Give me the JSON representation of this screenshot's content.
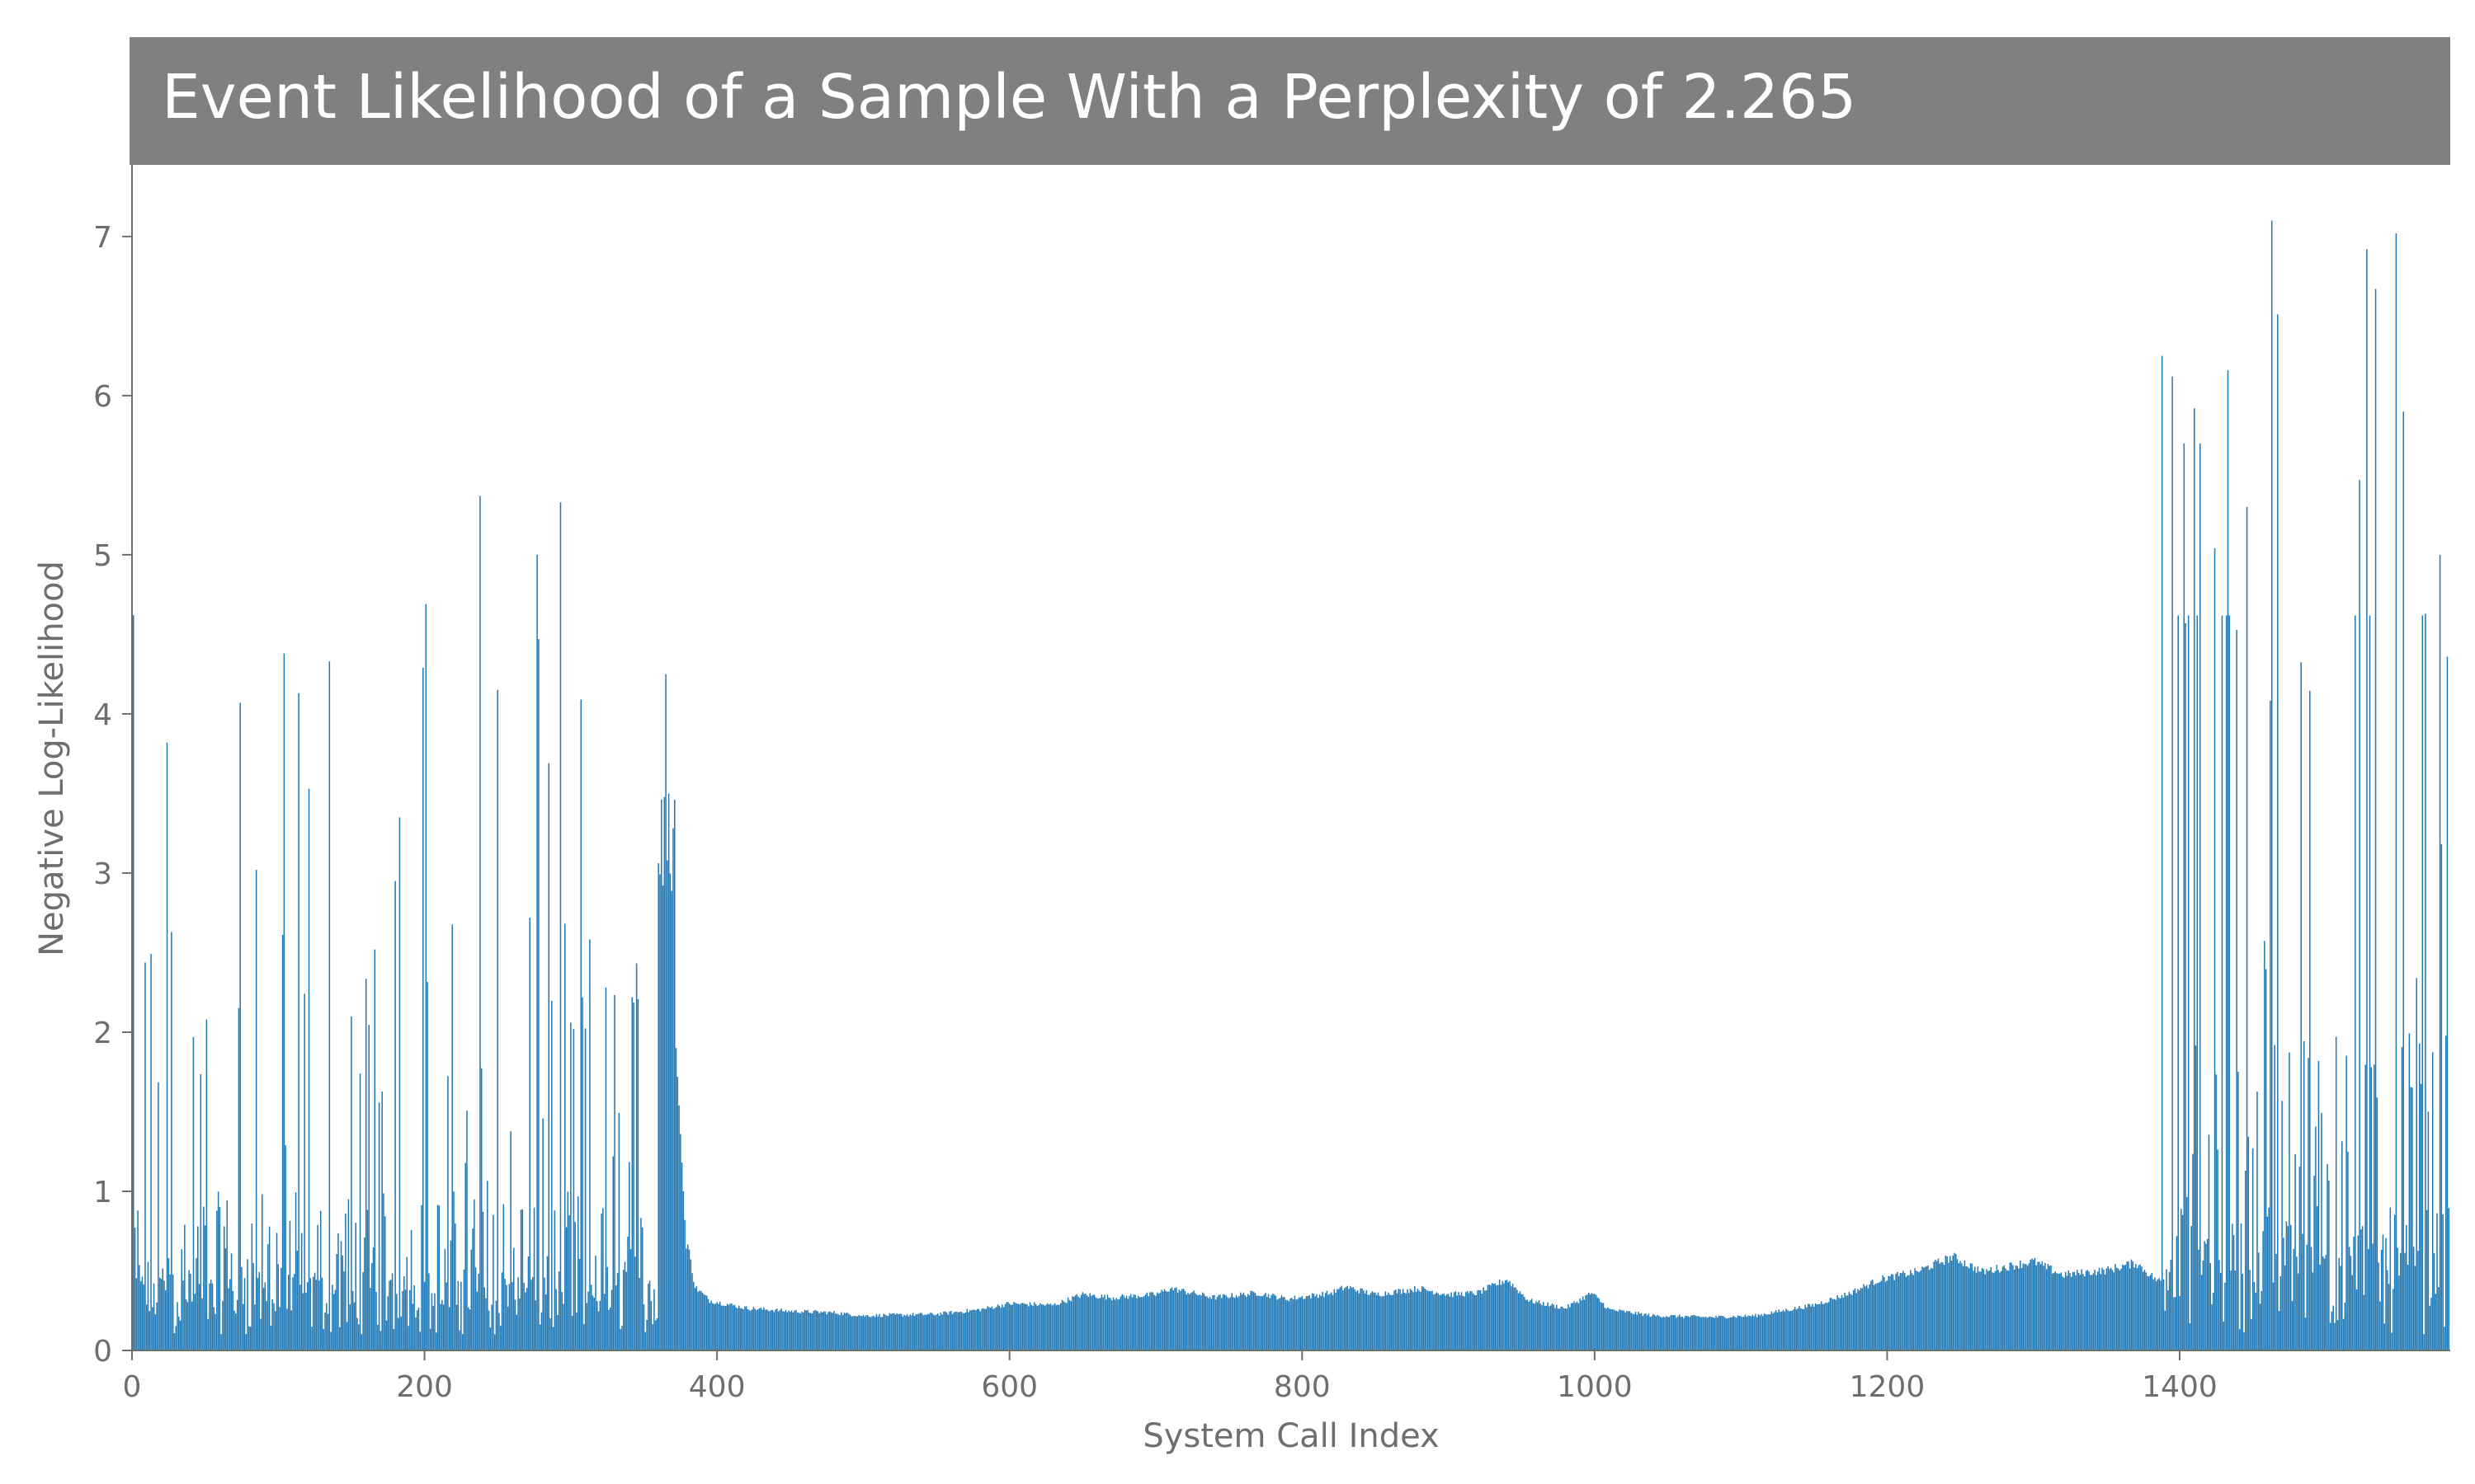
{
  "chart_data": {
    "type": "bar",
    "title": "Event Likelihood of a Sample With a Perplexity of 2.265",
    "xlabel": "System Call Index",
    "ylabel": "Negative Log-Likelihood",
    "xlim": [
      0,
      1585
    ],
    "ylim": [
      0,
      7.45
    ],
    "xticks": [
      0,
      200,
      400,
      600,
      800,
      1000,
      1200,
      1400
    ],
    "yticks": [
      0,
      1,
      2,
      3,
      4,
      5,
      6,
      7
    ],
    "grid": false,
    "bar_color": "#1f77b4",
    "title_background": "#808080",
    "n_points": 1585,
    "segments": [
      {
        "range": [
          0,
          380
        ],
        "pattern": "noisy",
        "baseline": 0.5,
        "notes": "spiky region, peaks up to ~5.4"
      },
      {
        "range": [
          380,
          1390
        ],
        "pattern": "smooth",
        "notes": "smooth low plateau ~0.2-0.6"
      },
      {
        "range": [
          1390,
          1585
        ],
        "pattern": "noisy",
        "baseline": 1.0,
        "notes": "spiky region, peaks up to ~7.1"
      }
    ],
    "smooth_profile": [
      [
        380,
        0.7
      ],
      [
        385,
        0.42
      ],
      [
        395,
        0.33
      ],
      [
        420,
        0.28
      ],
      [
        450,
        0.26
      ],
      [
        480,
        0.25
      ],
      [
        500,
        0.23
      ],
      [
        550,
        0.24
      ],
      [
        580,
        0.27
      ],
      [
        600,
        0.31
      ],
      [
        630,
        0.3
      ],
      [
        650,
        0.37
      ],
      [
        670,
        0.35
      ],
      [
        700,
        0.37
      ],
      [
        710,
        0.41
      ],
      [
        740,
        0.35
      ],
      [
        770,
        0.38
      ],
      [
        790,
        0.34
      ],
      [
        820,
        0.38
      ],
      [
        830,
        0.42
      ],
      [
        850,
        0.37
      ],
      [
        880,
        0.41
      ],
      [
        900,
        0.37
      ],
      [
        920,
        0.38
      ],
      [
        940,
        0.47
      ],
      [
        955,
        0.33
      ],
      [
        980,
        0.28
      ],
      [
        998,
        0.38
      ],
      [
        1010,
        0.27
      ],
      [
        1040,
        0.23
      ],
      [
        1080,
        0.22
      ],
      [
        1110,
        0.23
      ],
      [
        1150,
        0.3
      ],
      [
        1175,
        0.38
      ],
      [
        1195,
        0.47
      ],
      [
        1220,
        0.52
      ],
      [
        1245,
        0.62
      ],
      [
        1265,
        0.52
      ],
      [
        1300,
        0.59
      ],
      [
        1320,
        0.5
      ],
      [
        1350,
        0.53
      ],
      [
        1370,
        0.58
      ],
      [
        1385,
        0.46
      ],
      [
        1390,
        0.47
      ]
    ],
    "peaks": [
      {
        "x": 1,
        "y": 4.62
      },
      {
        "x": 24,
        "y": 3.82
      },
      {
        "x": 27,
        "y": 2.63
      },
      {
        "x": 51,
        "y": 2.08
      },
      {
        "x": 74,
        "y": 4.07
      },
      {
        "x": 85,
        "y": 3.02
      },
      {
        "x": 104,
        "y": 4.38
      },
      {
        "x": 114,
        "y": 4.13
      },
      {
        "x": 121,
        "y": 3.53
      },
      {
        "x": 135,
        "y": 4.33
      },
      {
        "x": 166,
        "y": 2.52
      },
      {
        "x": 180,
        "y": 2.95
      },
      {
        "x": 183,
        "y": 3.35
      },
      {
        "x": 199,
        "y": 4.29
      },
      {
        "x": 201,
        "y": 4.69
      },
      {
        "x": 238,
        "y": 5.37
      },
      {
        "x": 250,
        "y": 4.15
      },
      {
        "x": 272,
        "y": 2.72
      },
      {
        "x": 277,
        "y": 5.0
      },
      {
        "x": 278,
        "y": 4.47
      },
      {
        "x": 285,
        "y": 3.69
      },
      {
        "x": 293,
        "y": 5.33
      },
      {
        "x": 307,
        "y": 4.09
      },
      {
        "x": 342,
        "y": 2.22
      },
      {
        "x": 365,
        "y": 4.25
      },
      {
        "x": 367,
        "y": 3.5
      },
      {
        "x": 1388,
        "y": 6.25
      },
      {
        "x": 1395,
        "y": 6.12
      },
      {
        "x": 1403,
        "y": 5.7
      },
      {
        "x": 1410,
        "y": 5.92
      },
      {
        "x": 1414,
        "y": 5.7
      },
      {
        "x": 1424,
        "y": 5.04
      },
      {
        "x": 1433,
        "y": 6.16
      },
      {
        "x": 1446,
        "y": 5.3
      },
      {
        "x": 1463,
        "y": 7.1
      },
      {
        "x": 1467,
        "y": 6.51
      },
      {
        "x": 1523,
        "y": 5.47
      },
      {
        "x": 1528,
        "y": 6.92
      },
      {
        "x": 1534,
        "y": 6.67
      },
      {
        "x": 1548,
        "y": 7.02
      },
      {
        "x": 1553,
        "y": 5.9
      },
      {
        "x": 1568,
        "y": 4.63
      },
      {
        "x": 1578,
        "y": 5.0
      },
      {
        "x": 1583,
        "y": 4.36
      }
    ]
  }
}
